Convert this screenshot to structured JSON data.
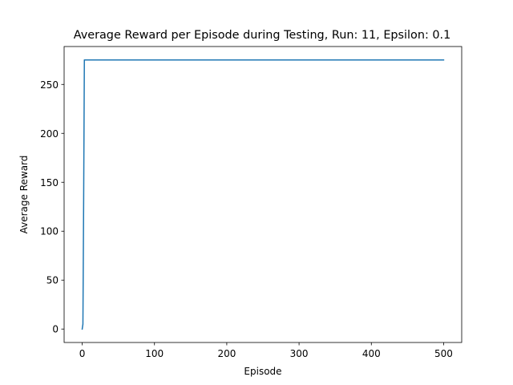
{
  "chart_data": {
    "type": "line",
    "title": "Average Reward per Episode during Testing, Run: 11, Epsilon: 0.1",
    "xlabel": "Episode",
    "ylabel": "Average Reward",
    "xlim": [
      -25,
      525
    ],
    "ylim": [
      -13.75,
      288.75
    ],
    "xticks": [
      0,
      100,
      200,
      300,
      400,
      500
    ],
    "yticks": [
      0,
      50,
      100,
      150,
      200,
      250
    ],
    "grid": false,
    "colors": {
      "line": "#1f77b4"
    },
    "series": [
      {
        "x": [
          0,
          1,
          2,
          3,
          500
        ],
        "y": [
          0,
          5,
          130,
          275,
          275
        ]
      }
    ]
  }
}
